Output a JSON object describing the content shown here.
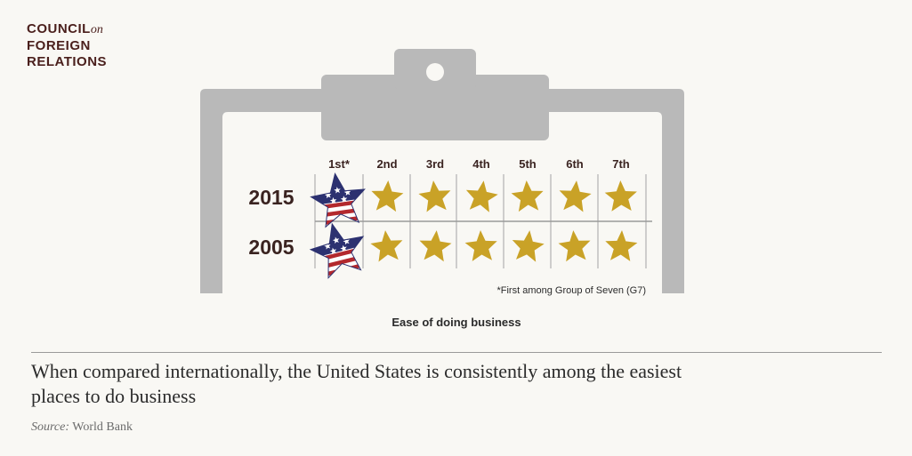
{
  "logo": {
    "line1": "COUNCIL",
    "line1_suffix": "on",
    "line2": "FOREIGN",
    "line3": "RELATIONS",
    "color": "#4a1f1c"
  },
  "chart_data": {
    "type": "table",
    "title": "Ease of doing business",
    "columns": [
      "1st*",
      "2nd",
      "3rd",
      "4th",
      "5th",
      "6th",
      "7th"
    ],
    "rows": [
      {
        "label": "2015",
        "us_rank": 1
      },
      {
        "label": "2005",
        "us_rank": 1
      }
    ],
    "footnote": "*First among Group of Seven (G7)",
    "colors": {
      "gold_star": "#c9a227",
      "flag_blue": "#2c3170",
      "flag_red": "#b3282d",
      "clipboard": "#b9b9b9"
    },
    "icons": {
      "us_marker": "us-flag-star-icon",
      "other_marker": "gold-star-icon"
    }
  },
  "headline": "When compared internationally, the United States is consistently among the easiest places to do business",
  "source": {
    "label": "Source:",
    "value": " World Bank"
  }
}
